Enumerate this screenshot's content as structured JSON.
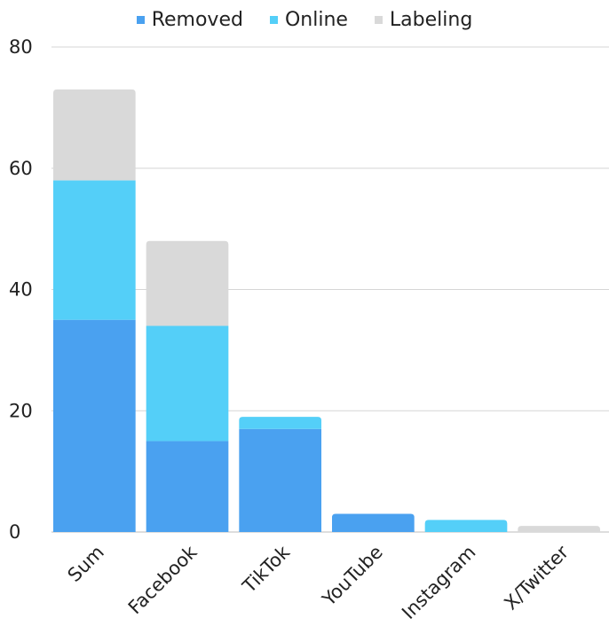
{
  "chart_data": {
    "type": "bar",
    "stacked": true,
    "title": "",
    "xlabel": "",
    "ylabel": "",
    "ylim": [
      0,
      80
    ],
    "yticks": [
      0,
      20,
      40,
      60,
      80
    ],
    "grid": true,
    "legend_position": "top",
    "categories": [
      "Sum",
      "Facebook",
      "TikTok",
      "YouTube",
      "Instagram",
      "X/Twitter"
    ],
    "series": [
      {
        "name": "Removed",
        "color": "#4aa1f0",
        "values": [
          35,
          15,
          17,
          3,
          0,
          0
        ]
      },
      {
        "name": "Online",
        "color": "#54cff8",
        "values": [
          23,
          19,
          2,
          0,
          2,
          0
        ]
      },
      {
        "name": "Labeling",
        "color": "#d9d9d9",
        "values": [
          15,
          14,
          0,
          0,
          0,
          1
        ]
      }
    ]
  }
}
